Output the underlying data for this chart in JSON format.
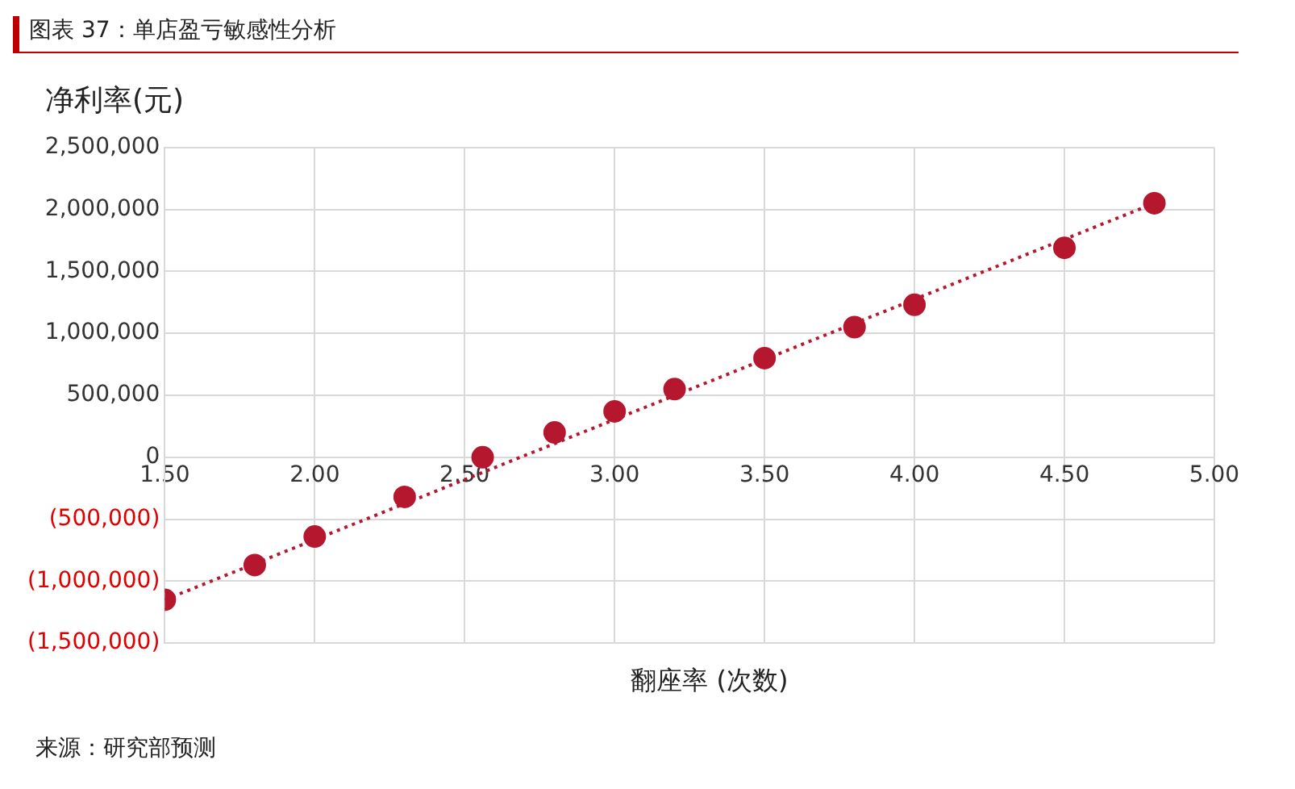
{
  "chart_data": {
    "type": "scatter",
    "title": "图表 37：单店盈亏敏感性分析",
    "ylabel": "净利率(元)",
    "xlabel": "翻座率 (次数)",
    "annotations": [
      "来源：研究部预测"
    ],
    "series": [
      {
        "color": "#b5172e",
        "x": [
          1.5,
          1.8,
          2.0,
          2.3,
          2.56,
          2.8,
          3.0,
          3.2,
          3.5,
          3.8,
          4.0,
          4.5,
          4.8
        ],
        "values": [
          -1150000,
          -870000,
          -640000,
          -320000,
          0,
          200000,
          370000,
          550000,
          800000,
          1050000,
          1230000,
          1690000,
          2050000
        ]
      },
      {
        "type": "line",
        "color": "#b5172e",
        "line_style": "dotted",
        "marker": "none",
        "x": [
          1.5,
          4.8
        ],
        "values": [
          -1150000,
          2050000
        ]
      }
    ],
    "marker": "circle",
    "xlim": [
      1.5,
      5.0
    ],
    "xticks": [
      {
        "value": 1.5,
        "label": "1.50"
      },
      {
        "value": 2,
        "label": "2.00"
      },
      {
        "value": 2.5,
        "label": "2.50"
      },
      {
        "value": 3,
        "label": "3.00"
      },
      {
        "value": 3.5,
        "label": "3.50"
      },
      {
        "value": 4,
        "label": "4.00"
      },
      {
        "value": 4.5,
        "label": "4.50"
      },
      {
        "value": 5,
        "label": "5.00"
      }
    ],
    "ylim": [
      -1500000,
      2500000
    ],
    "yticks": [
      {
        "value": -1500000,
        "label": "(1,500,000)"
      },
      {
        "value": -1000000,
        "label": "(1,000,000)"
      },
      {
        "value": -500000,
        "label": "(500,000)"
      },
      {
        "value": 0,
        "label": "0"
      },
      {
        "value": 500000,
        "label": "500,000"
      },
      {
        "value": 1000000,
        "label": "1,000,000"
      },
      {
        "value": 1500000,
        "label": "1,500,000"
      },
      {
        "value": 2000000,
        "label": "2,000,000"
      },
      {
        "value": 2500000,
        "label": "2,500,000"
      }
    ],
    "grid": true,
    "legend": false
  }
}
